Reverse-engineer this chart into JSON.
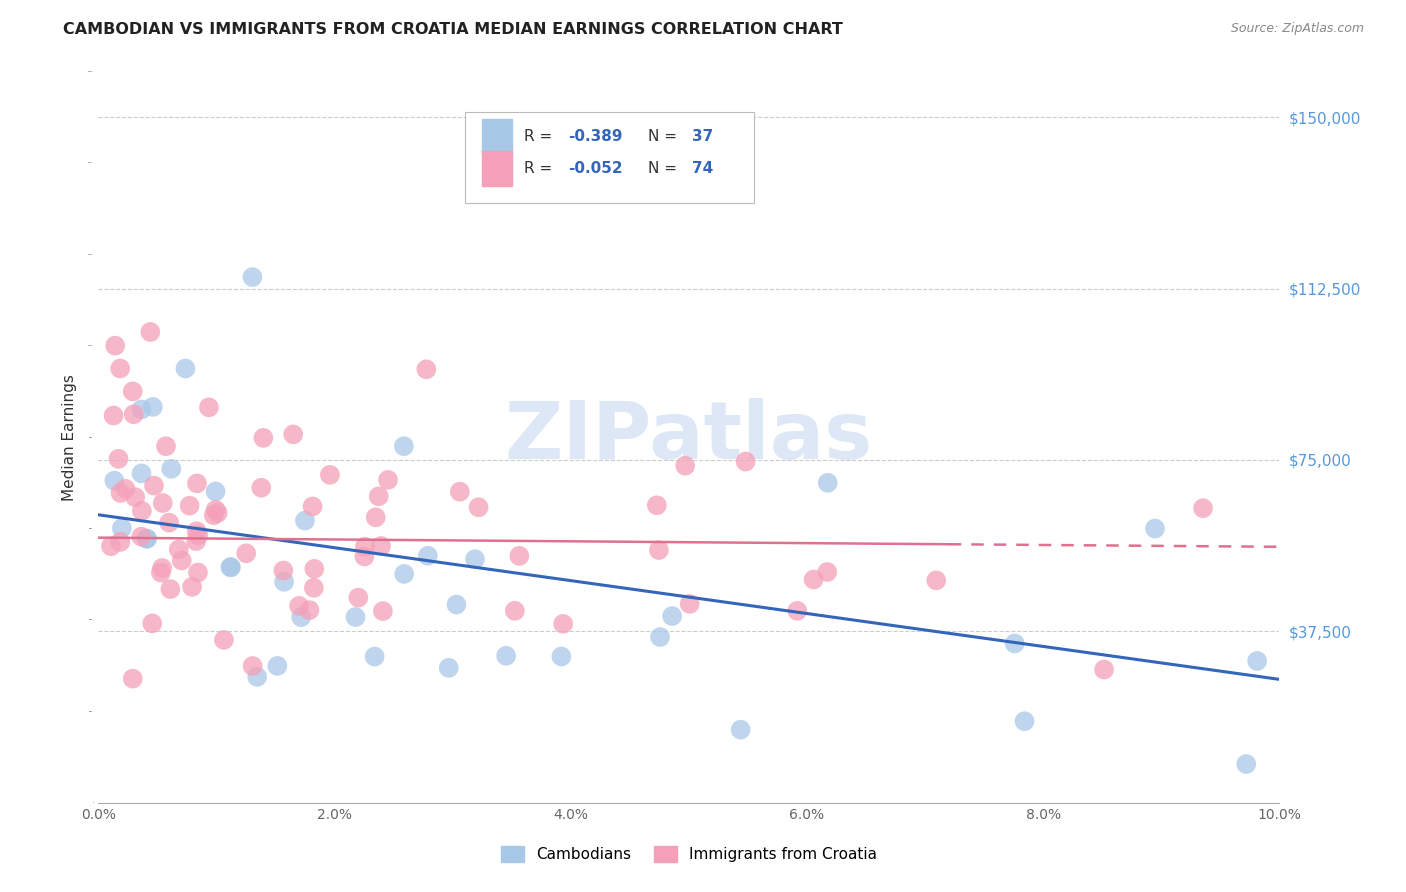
{
  "title": "CAMBODIAN VS IMMIGRANTS FROM CROATIA MEDIAN EARNINGS CORRELATION CHART",
  "source": "Source: ZipAtlas.com",
  "ylabel": "Median Earnings",
  "xmin": 0.0,
  "xmax": 0.1,
  "ymin": 0,
  "ymax": 160000,
  "yticks": [
    37500,
    75000,
    112500,
    150000
  ],
  "ytick_labels": [
    "$37,500",
    "$75,000",
    "$112,500",
    "$150,000"
  ],
  "xticks": [
    0.0,
    0.02,
    0.04,
    0.06,
    0.08,
    0.1
  ],
  "xtick_labels": [
    "0.0%",
    "2.0%",
    "4.0%",
    "6.0%",
    "8.0%",
    "10.0%"
  ],
  "legend_r1": "-0.389",
  "legend_n1": "37",
  "legend_r2": "-0.052",
  "legend_n2": "74",
  "cambodian_color": "#a8c8e8",
  "croatia_color": "#f4a0b8",
  "trend_blue": "#3366bb",
  "trend_pink": "#e07090",
  "blue_trend_x": [
    0.0,
    0.1
  ],
  "blue_trend_y": [
    63000,
    27000
  ],
  "pink_trend_x": [
    0.0,
    0.1
  ],
  "pink_trend_y": [
    58000,
    56000
  ],
  "watermark_text": "ZIPatlas",
  "watermark_color": "#c8d8f0",
  "background": "#ffffff",
  "grid_color": "#cccccc",
  "title_color": "#222222",
  "source_color": "#888888",
  "ylabel_color": "#333333",
  "ytick_color": "#5599dd",
  "xtick_color": "#666666"
}
